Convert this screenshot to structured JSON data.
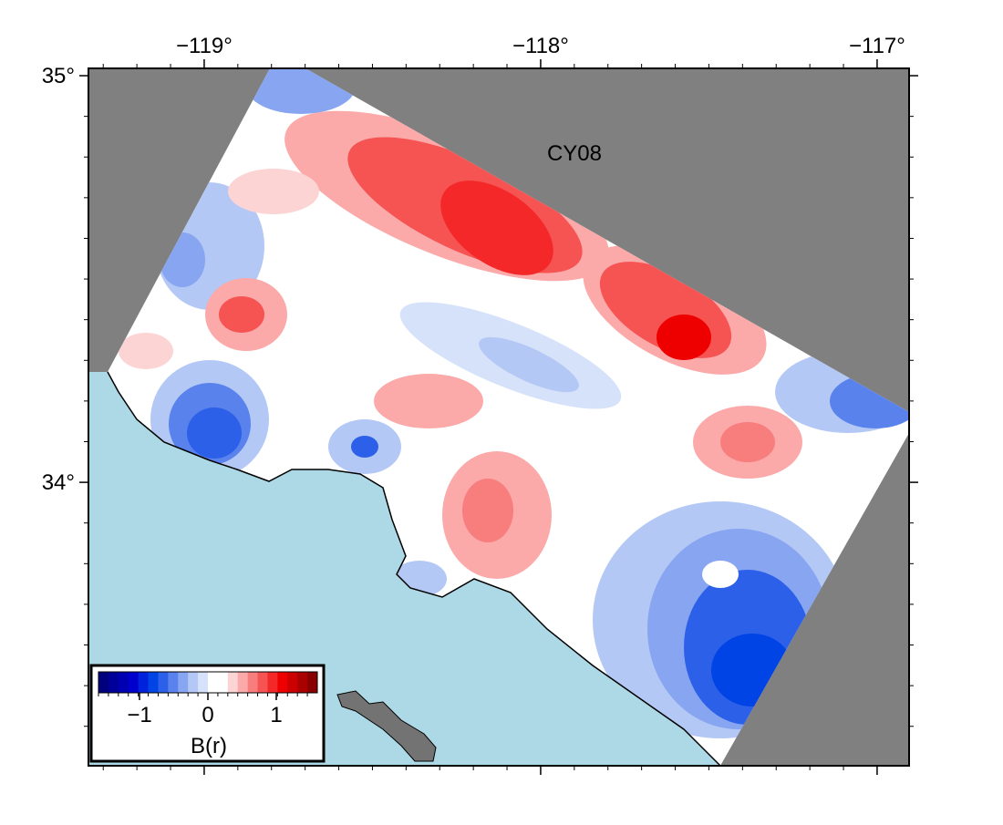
{
  "map": {
    "label": "CY08",
    "xlim": [
      -119.344,
      -116.905
    ],
    "ylim": [
      33.303,
      35.018
    ],
    "xticks": [
      {
        "value": -119,
        "label": "−119°"
      },
      {
        "value": -118,
        "label": "−118°"
      },
      {
        "value": -117,
        "label": "−117°"
      }
    ],
    "yticks": [
      {
        "value": 34,
        "label": "34°"
      },
      {
        "value": 35,
        "label": "35°"
      }
    ],
    "colorbar": {
      "label": "B(r)",
      "range": [
        -1.6,
        1.6
      ],
      "ticks": [
        {
          "value": -1,
          "label": "−1"
        },
        0,
        1
      ],
      "colors": [
        "#00007f",
        "#000099",
        "#0000b2",
        "#0000cc",
        "#0022dd",
        "#0044e5",
        "#2d60e8",
        "#5a82ec",
        "#87a5f0",
        "#b4c8f5",
        "#d6e2f9",
        "#ffffff",
        "#ffffff",
        "#fdd4d4",
        "#fba9a9",
        "#f87e7e",
        "#f65353",
        "#f42828",
        "#ee0000",
        "#cc0000",
        "#aa0000",
        "#880000"
      ]
    }
  }
}
